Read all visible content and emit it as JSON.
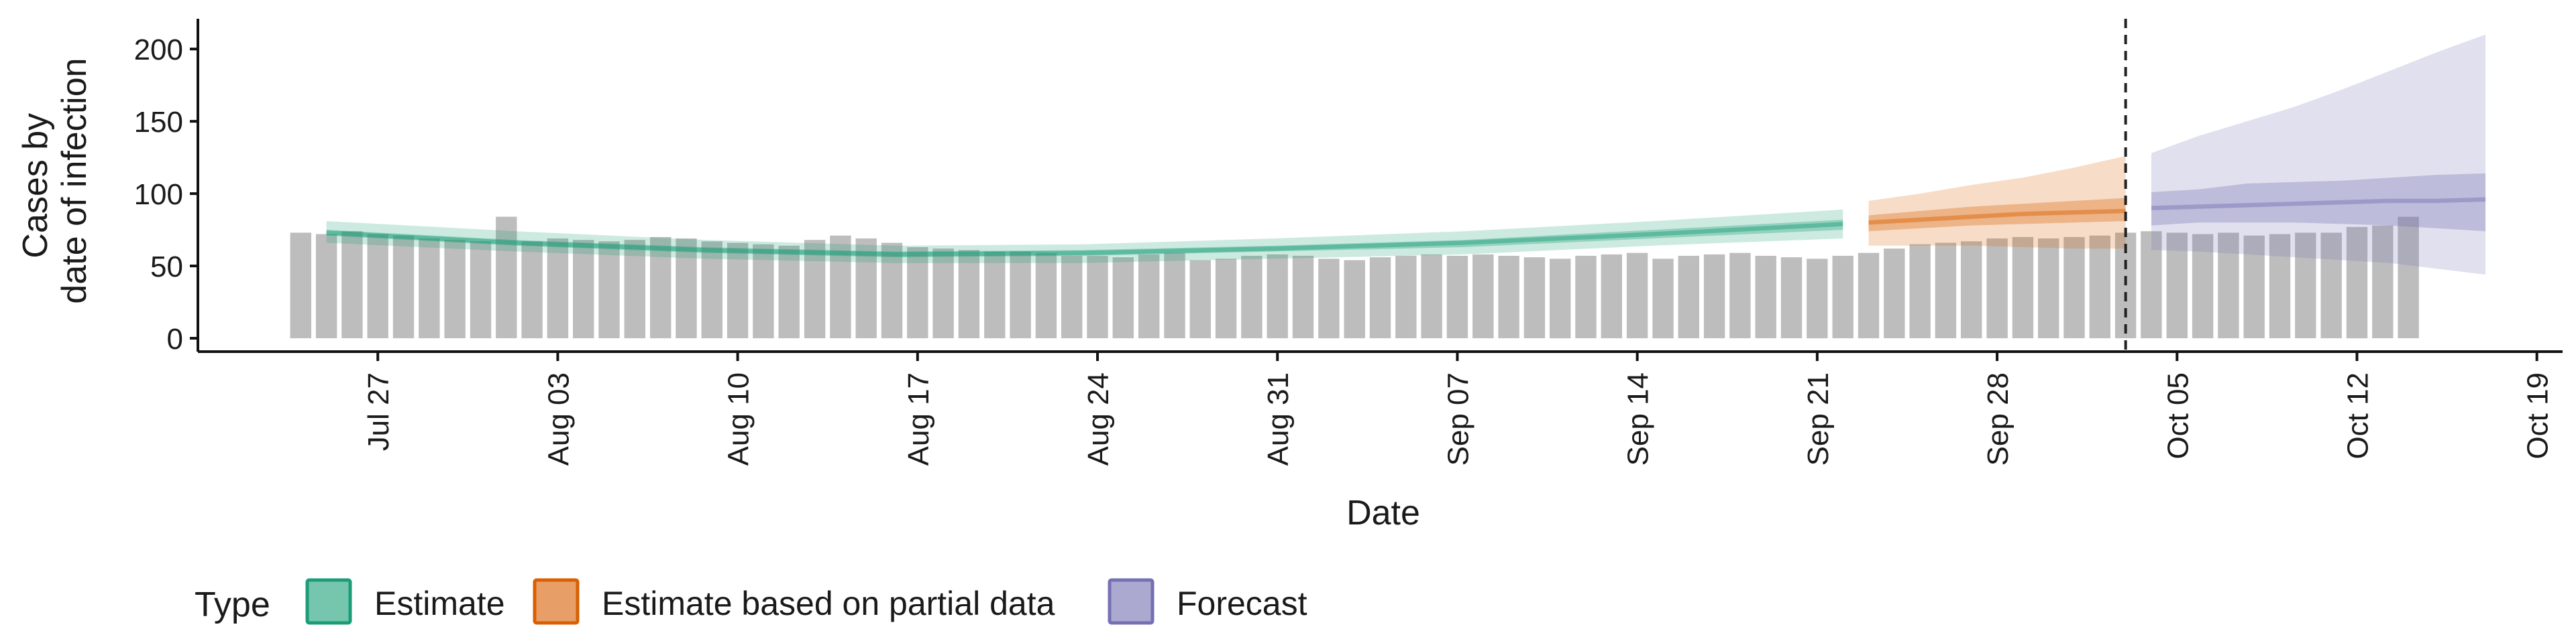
{
  "chart_data": {
    "type": "bar",
    "xlabel": "Date",
    "ylabel": [
      "Cases by",
      "date of infection"
    ],
    "ylim": [
      0,
      220
    ],
    "yticks": [
      0,
      50,
      100,
      150,
      200
    ],
    "x_range": [
      "2021-07-20",
      "2021-10-20"
    ],
    "xticks": [
      {
        "date": "2021-07-27",
        "label": "Jul 27"
      },
      {
        "date": "2021-08-03",
        "label": "Aug 03"
      },
      {
        "date": "2021-08-10",
        "label": "Aug 10"
      },
      {
        "date": "2021-08-17",
        "label": "Aug 17"
      },
      {
        "date": "2021-08-24",
        "label": "Aug 24"
      },
      {
        "date": "2021-08-31",
        "label": "Aug 31"
      },
      {
        "date": "2021-09-07",
        "label": "Sep 07"
      },
      {
        "date": "2021-09-14",
        "label": "Sep 14"
      },
      {
        "date": "2021-09-21",
        "label": "Sep 21"
      },
      {
        "date": "2021-09-28",
        "label": "Sep 28"
      },
      {
        "date": "2021-10-05",
        "label": "Oct 05"
      },
      {
        "date": "2021-10-12",
        "label": "Oct 12"
      },
      {
        "date": "2021-10-19",
        "label": "Oct 19"
      }
    ],
    "reported_cases": {
      "start_date": "2021-07-24",
      "values": [
        73,
        72,
        74,
        72,
        71,
        69,
        68,
        67,
        84,
        67,
        69,
        68,
        67,
        68,
        70,
        69,
        67,
        66,
        65,
        64,
        68,
        71,
        69,
        66,
        63,
        62,
        61,
        60,
        60,
        59,
        57,
        57,
        56,
        58,
        59,
        54,
        55,
        57,
        58,
        57,
        55,
        54,
        56,
        57,
        58,
        57,
        58,
        57,
        56,
        55,
        57,
        58,
        59,
        55,
        57,
        58,
        59,
        57,
        56,
        55,
        57,
        59,
        62,
        65,
        66,
        67,
        69,
        70,
        69,
        70,
        71,
        73,
        74,
        73,
        72,
        73,
        71,
        72,
        73,
        73,
        77,
        78,
        84
      ]
    },
    "vertical_line_date": "2021-10-03",
    "series": [
      {
        "name": "Estimate",
        "color": "#1b9e77",
        "x_start": "2021-07-25",
        "x_end": "2021-09-22",
        "median": [
          73,
          66,
          61,
          58,
          59,
          62,
          66,
          72,
          79
        ],
        "inner_lower": [
          71,
          64,
          59,
          56,
          57,
          60,
          63,
          69,
          75
        ],
        "inner_upper": [
          75,
          68,
          63,
          60,
          61,
          64,
          68,
          75,
          82
        ],
        "outer_lower": [
          66,
          60,
          55,
          52,
          52,
          55,
          58,
          64,
          69
        ],
        "outer_upper": [
          81,
          74,
          68,
          64,
          65,
          69,
          74,
          81,
          89
        ]
      },
      {
        "name": "Estimate based on partial data",
        "color": "#d95f02",
        "x_start": "2021-09-23",
        "x_end": "2021-10-03",
        "median": [
          80,
          82,
          84,
          86,
          87,
          88
        ],
        "inner_lower": [
          74,
          76,
          78,
          79,
          80,
          81
        ],
        "inner_upper": [
          85,
          88,
          91,
          93,
          95,
          97
        ],
        "outer_lower": [
          64,
          64,
          64,
          63,
          62,
          62
        ],
        "outer_upper": [
          95,
          100,
          106,
          111,
          118,
          126
        ]
      },
      {
        "name": "Forecast",
        "color": "#7570b3",
        "x_start": "2021-10-04",
        "x_end": "2021-10-17",
        "median": [
          90,
          91,
          92,
          93,
          94,
          95,
          95,
          96
        ],
        "inner_lower": [
          78,
          80,
          80,
          80,
          79,
          78,
          76,
          74
        ],
        "inner_upper": [
          101,
          103,
          107,
          108,
          109,
          111,
          113,
          114
        ],
        "outer_lower": [
          61,
          60,
          58,
          56,
          54,
          52,
          48,
          44
        ],
        "outer_upper": [
          128,
          140,
          150,
          160,
          172,
          185,
          198,
          210
        ]
      }
    ],
    "legend": {
      "title": "Type",
      "position": "bottom",
      "items": [
        {
          "label": "Estimate",
          "color": "#1b9e77"
        },
        {
          "label": "Estimate based on partial data",
          "color": "#d95f02"
        },
        {
          "label": "Forecast",
          "color": "#7570b3"
        }
      ]
    },
    "grid": false
  }
}
